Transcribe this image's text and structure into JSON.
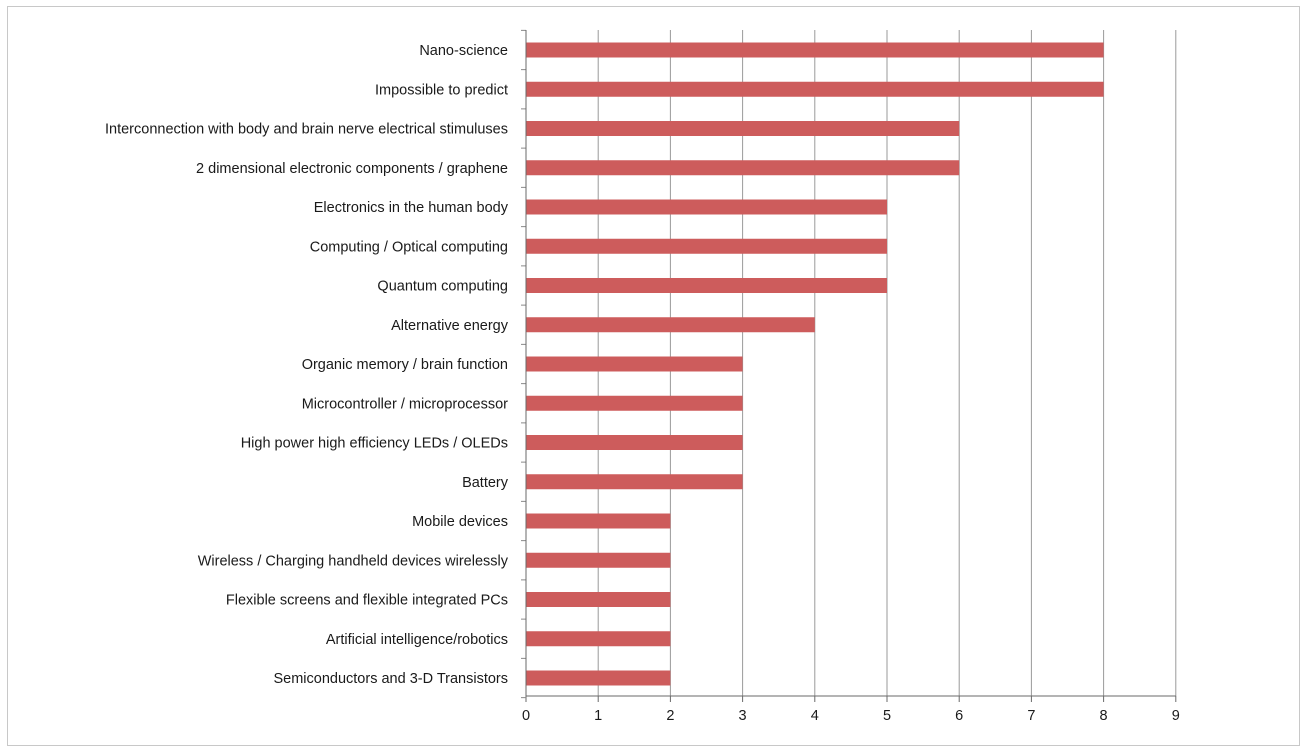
{
  "chart_data": {
    "type": "bar",
    "orientation": "horizontal",
    "title": "",
    "xlabel": "",
    "ylabel": "",
    "xlim": [
      0,
      9
    ],
    "x_ticks": [
      0,
      1,
      2,
      3,
      4,
      5,
      6,
      7,
      8,
      9
    ],
    "grid": true,
    "bar_color": "#cd5c5c",
    "categories": [
      "Nano-science",
      "Impossible to predict",
      "Interconnection with body and brain nerve electrical stimuluses",
      "2 dimensional electronic components / graphene",
      "Electronics in the human body",
      "Computing / Optical computing",
      "Quantum computing",
      "Alternative energy",
      "Organic memory / brain function",
      "Microcontroller / microprocessor",
      "High power high efficiency LEDs / OLEDs",
      "Battery",
      "Mobile devices",
      "Wireless / Charging handheld devices wirelessly",
      "Flexible screens and flexible integrated PCs",
      "Artificial intelligence/robotics",
      "Semiconductors and 3-D Transistors"
    ],
    "values": [
      8,
      8,
      6,
      6,
      5,
      5,
      5,
      4,
      3,
      3,
      3,
      3,
      2,
      2,
      2,
      2,
      2
    ]
  }
}
